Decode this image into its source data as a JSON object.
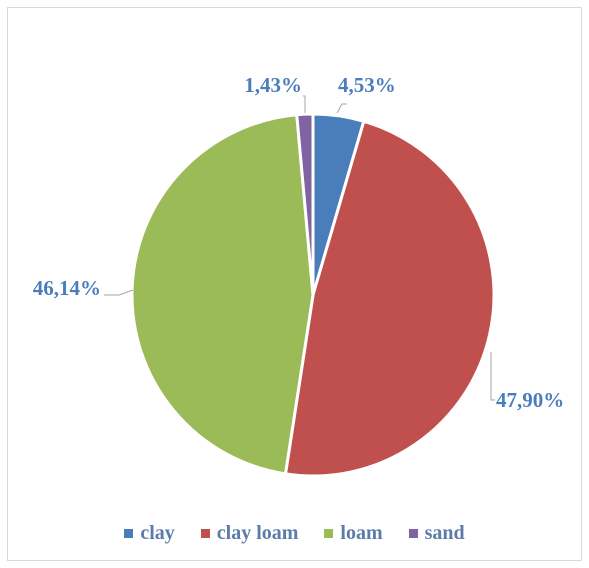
{
  "chart_data": {
    "type": "pie",
    "title": "",
    "categories": [
      "clay",
      "clay loam",
      "loam",
      "sand"
    ],
    "values": [
      4.53,
      47.9,
      46.14,
      1.43
    ],
    "labels": [
      "4,53%",
      "47,90%",
      "46,14%",
      "1,43%"
    ],
    "colors": [
      "#4a7ebb",
      "#c0504d",
      "#9bbb59",
      "#8064a2"
    ],
    "label_color": "#4a7ebb",
    "legend_position": "bottom"
  }
}
